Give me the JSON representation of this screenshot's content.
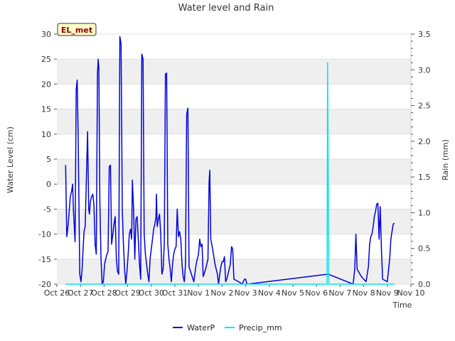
{
  "chart_data": {
    "type": "line",
    "title": "Water level and Rain",
    "xlabel": "Time",
    "ylabel_left": "Water Level (cm)",
    "ylabel_right": "Rain (mm)",
    "badge": "EL_met",
    "x_ticks": [
      "Oct 26",
      "Oct 27",
      "Oct 28",
      "Oct 29",
      "Oct 30",
      "Oct 31",
      "Nov 1",
      "Nov 2",
      "Nov 3",
      "Nov 4",
      "Nov 5",
      "Nov 6",
      "Nov 7",
      "Nov 8",
      "Nov 9",
      "Nov 10"
    ],
    "xlim": [
      0,
      15
    ],
    "ylim_left": [
      -20,
      30
    ],
    "ylim_right": [
      0.0,
      3.5
    ],
    "y_ticks_left": [
      "-20",
      "-15",
      "-10",
      "-5",
      "0",
      "5",
      "10",
      "15",
      "20",
      "25",
      "30"
    ],
    "y_ticks_right": [
      "0.0",
      "0.5",
      "1.0",
      "1.5",
      "2.0",
      "2.5",
      "3.0",
      "3.5"
    ],
    "series": [
      {
        "name": "WaterP",
        "color": "#0000dd",
        "axis": "left",
        "points": [
          [
            0.37,
            3.8
          ],
          [
            0.42,
            -10.5
          ],
          [
            0.47,
            -8.5
          ],
          [
            0.52,
            -5.5
          ],
          [
            0.57,
            -2.5
          ],
          [
            0.62,
            -1.5
          ],
          [
            0.67,
            0.0
          ],
          [
            0.7,
            -5.0
          ],
          [
            0.77,
            -11.5
          ],
          [
            0.82,
            19.0
          ],
          [
            0.86,
            20.8
          ],
          [
            0.9,
            10.0
          ],
          [
            0.97,
            -18.0
          ],
          [
            1.02,
            -19.5
          ],
          [
            1.07,
            -17.0
          ],
          [
            1.1,
            -14.0
          ],
          [
            1.15,
            -9.5
          ],
          [
            1.2,
            -8.5
          ],
          [
            1.27,
            5.0
          ],
          [
            1.3,
            10.5
          ],
          [
            1.35,
            -5.0
          ],
          [
            1.38,
            -6.0
          ],
          [
            1.42,
            -3.5
          ],
          [
            1.47,
            -2.5
          ],
          [
            1.52,
            -2.0
          ],
          [
            1.57,
            -4.0
          ],
          [
            1.62,
            -12.0
          ],
          [
            1.67,
            -14.0
          ],
          [
            1.72,
            22.0
          ],
          [
            1.75,
            25.0
          ],
          [
            1.78,
            23.0
          ],
          [
            1.82,
            -3.0
          ],
          [
            1.87,
            -15.0
          ],
          [
            1.92,
            -20.0
          ],
          [
            1.97,
            -19.5
          ],
          [
            2.02,
            -16.0
          ],
          [
            2.07,
            -15.0
          ],
          [
            2.12,
            -14.0
          ],
          [
            2.17,
            -13.5
          ],
          [
            2.22,
            3.5
          ],
          [
            2.27,
            3.8
          ],
          [
            2.32,
            -12.0
          ],
          [
            2.37,
            -10.0
          ],
          [
            2.42,
            -8.0
          ],
          [
            2.47,
            -6.5
          ],
          [
            2.52,
            -15.0
          ],
          [
            2.57,
            -17.5
          ],
          [
            2.62,
            -18.0
          ],
          [
            2.67,
            29.5
          ],
          [
            2.72,
            28.0
          ],
          [
            2.77,
            -5.0
          ],
          [
            2.82,
            -12.0
          ],
          [
            2.87,
            -17.0
          ],
          [
            2.92,
            -20.0
          ],
          [
            2.97,
            -17.5
          ],
          [
            3.02,
            -14.0
          ],
          [
            3.07,
            -10.0
          ],
          [
            3.12,
            -9.0
          ],
          [
            3.17,
            -11.0
          ],
          [
            3.2,
            0.8
          ],
          [
            3.25,
            -5.0
          ],
          [
            3.3,
            -15.0
          ],
          [
            3.35,
            -7.0
          ],
          [
            3.4,
            -6.5
          ],
          [
            3.45,
            -11.0
          ],
          [
            3.5,
            -16.0
          ],
          [
            3.55,
            -19.0
          ],
          [
            3.6,
            26.0
          ],
          [
            3.65,
            25.0
          ],
          [
            3.7,
            -10.0
          ],
          [
            3.75,
            -14.0
          ],
          [
            3.8,
            -16.0
          ],
          [
            3.85,
            -18.0
          ],
          [
            3.9,
            -19.5
          ],
          [
            3.95,
            -15.0
          ],
          [
            4.0,
            -13.0
          ],
          [
            4.05,
            -11.0
          ],
          [
            4.1,
            -9.0
          ],
          [
            4.15,
            -8.0
          ],
          [
            4.2,
            -6.5
          ],
          [
            4.22,
            -2.0
          ],
          [
            4.25,
            -8.5
          ],
          [
            4.3,
            -7.0
          ],
          [
            4.35,
            -6.0
          ],
          [
            4.4,
            -10.0
          ],
          [
            4.45,
            -18.0
          ],
          [
            4.5,
            -17.0
          ],
          [
            4.55,
            -12.0
          ],
          [
            4.6,
            22.0
          ],
          [
            4.65,
            22.2
          ],
          [
            4.7,
            -12.0
          ],
          [
            4.75,
            -15.0
          ],
          [
            4.8,
            -17.0
          ],
          [
            4.85,
            -19.5
          ],
          [
            4.9,
            -16.0
          ],
          [
            4.95,
            -14.0
          ],
          [
            5.0,
            -13.0
          ],
          [
            5.05,
            -12.5
          ],
          [
            5.1,
            -5.0
          ],
          [
            5.15,
            -10.5
          ],
          [
            5.2,
            -9.5
          ],
          [
            5.25,
            -11.0
          ],
          [
            5.3,
            -16.0
          ],
          [
            5.35,
            -18.5
          ],
          [
            5.4,
            -19.5
          ],
          [
            5.45,
            -16.0
          ],
          [
            5.5,
            14.0
          ],
          [
            5.55,
            15.2
          ],
          [
            5.6,
            -16.5
          ],
          [
            5.7,
            -18.0
          ],
          [
            5.8,
            -19.5
          ],
          [
            5.9,
            -16.0
          ],
          [
            5.95,
            -15.0
          ],
          [
            6.0,
            -14.0
          ],
          [
            6.05,
            -11.0
          ],
          [
            6.1,
            -12.5
          ],
          [
            6.15,
            -12.0
          ],
          [
            6.2,
            -18.5
          ],
          [
            6.3,
            -17.0
          ],
          [
            6.4,
            -15.0
          ],
          [
            6.45,
            0.5
          ],
          [
            6.48,
            2.8
          ],
          [
            6.52,
            -11.0
          ],
          [
            6.6,
            -13.0
          ],
          [
            6.7,
            -16.0
          ],
          [
            6.8,
            -18.0
          ],
          [
            6.85,
            -20.0
          ],
          [
            6.9,
            -18.0
          ],
          [
            6.95,
            -16.5
          ],
          [
            7.0,
            -15.5
          ],
          [
            7.05,
            -15.5
          ],
          [
            7.1,
            -14.5
          ],
          [
            7.15,
            -19.5
          ],
          [
            7.2,
            -19.0
          ],
          [
            7.3,
            -17.0
          ],
          [
            7.35,
            -16.0
          ],
          [
            7.4,
            -12.5
          ],
          [
            7.45,
            -13.0
          ],
          [
            7.5,
            -19.0
          ],
          [
            7.7,
            -19.5
          ],
          [
            7.85,
            -20.0
          ],
          [
            7.95,
            -19.0
          ],
          [
            8.0,
            -19.0
          ],
          [
            8.05,
            -20.0
          ],
          [
            11.5,
            -18.0
          ],
          [
            12.55,
            -20.0
          ],
          [
            12.62,
            -17.0
          ],
          [
            12.67,
            -10.0
          ],
          [
            12.72,
            -17.0
          ],
          [
            12.9,
            -18.5
          ],
          [
            13.1,
            -19.5
          ],
          [
            13.2,
            -16.5
          ],
          [
            13.25,
            -12.0
          ],
          [
            13.3,
            -10.5
          ],
          [
            13.35,
            -10.0
          ],
          [
            13.4,
            -8.5
          ],
          [
            13.45,
            -6.5
          ],
          [
            13.5,
            -5.5
          ],
          [
            13.55,
            -4.0
          ],
          [
            13.6,
            -3.8
          ],
          [
            13.65,
            -11.0
          ],
          [
            13.7,
            -4.5
          ],
          [
            13.75,
            -13.0
          ],
          [
            13.8,
            -19.0
          ],
          [
            14.0,
            -19.5
          ],
          [
            14.1,
            -15.0
          ],
          [
            14.15,
            -11.0
          ],
          [
            14.2,
            -9.5
          ],
          [
            14.25,
            -8.0
          ],
          [
            14.3,
            -7.8
          ]
        ]
      },
      {
        "name": "Precip_mm",
        "color": "#00e5ee",
        "axis": "right",
        "points": [
          [
            0.37,
            0.0
          ],
          [
            11.45,
            0.0
          ],
          [
            11.47,
            3.1
          ],
          [
            11.52,
            0.0
          ],
          [
            14.3,
            0.0
          ]
        ]
      }
    ],
    "legend": [
      "WaterP",
      "Precip_mm"
    ],
    "legend_position": "bottom",
    "background": "banded-grey"
  }
}
